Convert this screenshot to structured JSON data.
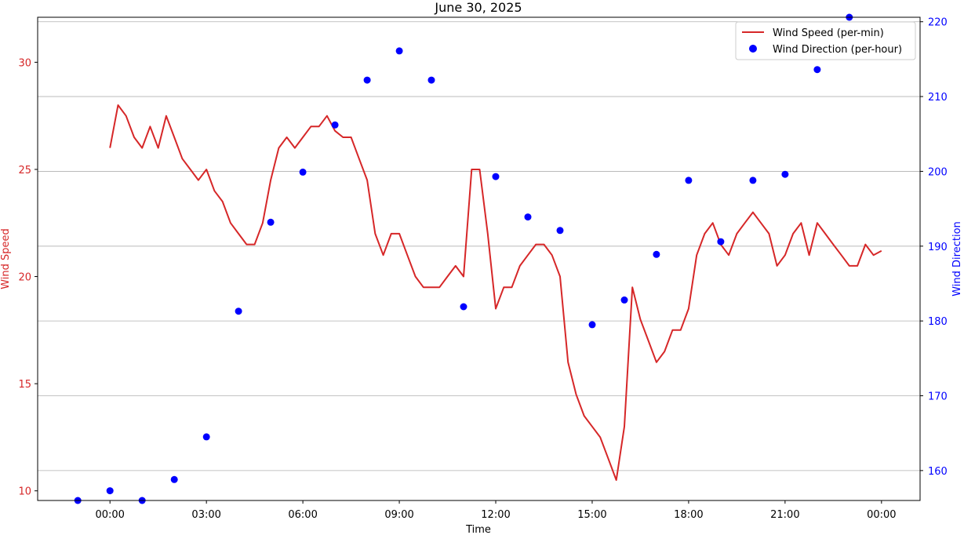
{
  "chart_data": {
    "type": "line",
    "title": "June 30, 2025",
    "xlabel": "Time",
    "ylabel_left": "Wind Speed",
    "ylabel_right": "Wind Direction",
    "x_ticks": [
      "00:00",
      "03:00",
      "06:00",
      "09:00",
      "12:00",
      "15:00",
      "18:00",
      "21:00",
      "00:00"
    ],
    "x_tick_hours": [
      0,
      3,
      6,
      9,
      12,
      15,
      18,
      21,
      24
    ],
    "xlim_hours": [
      -2.25,
      25.2
    ],
    "y_left_ticks": [
      10,
      15,
      20,
      25,
      30
    ],
    "y_left_lim": [
      9.55,
      32.1
    ],
    "y_right_ticks": [
      160,
      170,
      180,
      190,
      200,
      210,
      220
    ],
    "y_right_lim": [
      156,
      220.6
    ],
    "grid": "horizontal lines at right-axis ticks",
    "legend_position": "top-right",
    "colors": {
      "speed": "#d62728",
      "direction": "#0000ff",
      "left_axis_text": "#d62728",
      "right_axis_text": "#0000ff"
    },
    "series": [
      {
        "name": "Wind Speed (per-min)",
        "axis": "left",
        "style": "line",
        "x_hours": [
          0,
          0.25,
          0.5,
          0.75,
          1.0,
          1.25,
          1.5,
          1.75,
          2.0,
          2.25,
          2.5,
          2.75,
          3.0,
          3.25,
          3.5,
          3.75,
          4.0,
          4.25,
          4.5,
          4.75,
          5.0,
          5.25,
          5.5,
          5.75,
          6.0,
          6.25,
          6.5,
          6.75,
          7.0,
          7.25,
          7.5,
          7.75,
          8.0,
          8.25,
          8.5,
          8.75,
          9.0,
          9.25,
          9.5,
          9.75,
          10.0,
          10.25,
          10.5,
          10.75,
          11.0,
          11.25,
          11.5,
          11.75,
          12.0,
          12.25,
          12.5,
          12.75,
          13.0,
          13.25,
          13.5,
          13.75,
          14.0,
          14.25,
          14.5,
          14.75,
          15.0,
          15.25,
          15.5,
          15.75,
          16.0,
          16.25,
          16.5,
          16.75,
          17.0,
          17.25,
          17.5,
          17.75,
          18.0,
          18.25,
          18.5,
          18.75,
          19.0,
          19.25,
          19.5,
          19.75,
          20.0,
          20.25,
          20.5,
          20.75,
          21.0,
          21.25,
          21.5,
          21.75,
          22.0,
          22.25,
          22.5,
          22.75,
          23.0,
          23.25,
          23.5,
          23.75,
          24.0
        ],
        "values": [
          26.0,
          28.0,
          27.5,
          26.5,
          26.0,
          27.0,
          26.0,
          27.5,
          26.5,
          25.5,
          25.0,
          24.5,
          25.0,
          24.0,
          23.5,
          22.5,
          22.0,
          21.5,
          21.5,
          22.5,
          24.5,
          26.0,
          26.5,
          26.0,
          26.5,
          27.0,
          27.0,
          27.5,
          26.8,
          26.5,
          26.5,
          25.5,
          24.5,
          22.0,
          21.0,
          22.0,
          22.0,
          21.0,
          20.0,
          19.5,
          19.5,
          19.5,
          20.0,
          20.5,
          20.0,
          25.0,
          25.0,
          22.0,
          18.5,
          19.5,
          19.5,
          20.5,
          21.0,
          21.5,
          21.5,
          21.0,
          20.0,
          16.0,
          14.5,
          13.5,
          13.0,
          12.5,
          11.5,
          10.5,
          13.0,
          19.5,
          18.0,
          17.0,
          16.0,
          16.5,
          17.5,
          17.5,
          18.5,
          21.0,
          22.0,
          22.5,
          21.5,
          21.0,
          22.0,
          22.5,
          23.0,
          22.5,
          22.0,
          20.5,
          21.0,
          22.0,
          22.5,
          21.0,
          22.5,
          22.0,
          21.5,
          21.0,
          20.5,
          20.5,
          21.5,
          21.0,
          21.2
        ]
      },
      {
        "name": "Wind Direction (per-hour)",
        "axis": "right",
        "style": "points",
        "x_hours": [
          -1,
          0,
          1,
          2,
          3,
          4,
          5,
          6,
          7,
          8,
          9,
          10,
          11,
          12,
          13,
          14,
          15,
          16,
          17,
          18,
          19,
          20,
          21,
          22,
          23
        ],
        "values": [
          156.0,
          157.3,
          156.0,
          158.8,
          164.5,
          181.3,
          193.2,
          199.9,
          206.2,
          212.2,
          216.1,
          212.2,
          181.9,
          199.3,
          193.9,
          192.1,
          179.5,
          182.8,
          188.9,
          198.8,
          190.6,
          198.8,
          199.6,
          213.6,
          220.6
        ]
      }
    ]
  }
}
